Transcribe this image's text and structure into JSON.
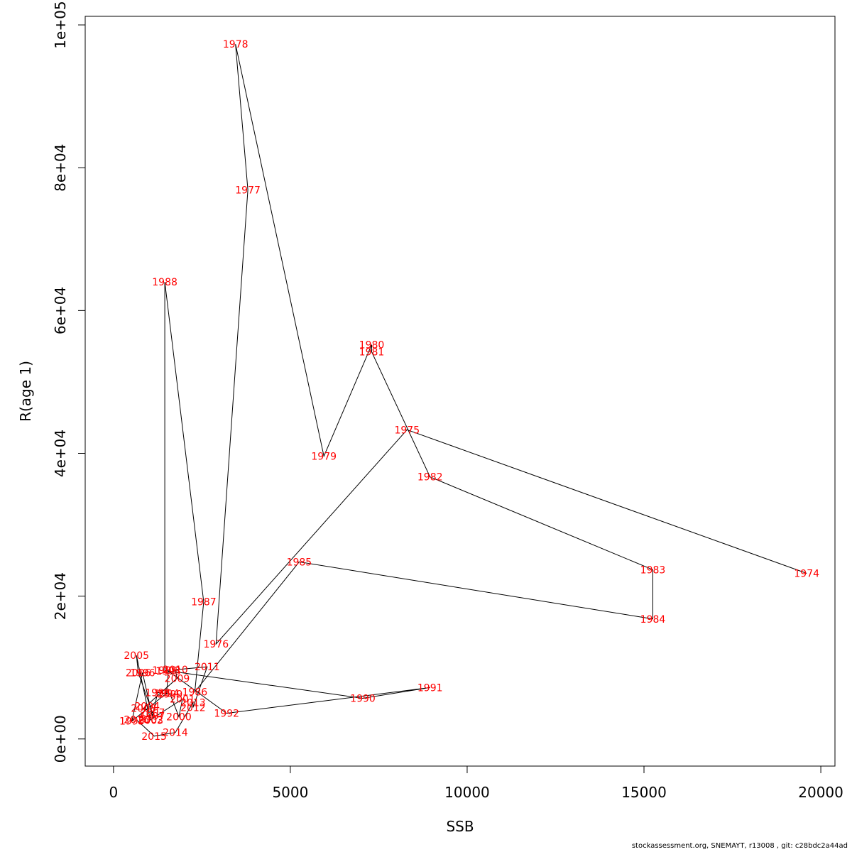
{
  "chart_data": {
    "type": "line",
    "xlabel": "SSB",
    "ylabel": "R(age 1)",
    "xlim": [
      -800,
      20400
    ],
    "ylim": [
      -3800,
      101200
    ],
    "x_ticks": [
      0,
      5000,
      10000,
      15000,
      20000
    ],
    "x_tick_labels": [
      "0",
      "5000",
      "10000",
      "15000",
      "20000"
    ],
    "y_ticks": [
      0,
      20000,
      40000,
      60000,
      80000,
      100000
    ],
    "y_tick_labels": [
      "0e+00",
      "2e+04",
      "4e+04",
      "6e+04",
      "8e+04",
      "1e+05"
    ],
    "grid": false,
    "legend": "none",
    "line_color": "#000000",
    "label_color": "#ff0000",
    "points": [
      {
        "year": "1974",
        "x": 19600,
        "y": 23200
      },
      {
        "year": "1975",
        "x": 8300,
        "y": 43300
      },
      {
        "year": "1976",
        "x": 2900,
        "y": 13300
      },
      {
        "year": "1977",
        "x": 3800,
        "y": 76900
      },
      {
        "year": "1978",
        "x": 3450,
        "y": 97300
      },
      {
        "year": "1979",
        "x": 5950,
        "y": 39600
      },
      {
        "year": "1980",
        "x": 7300,
        "y": 55200
      },
      {
        "year": "1981",
        "x": 7300,
        "y": 54200
      },
      {
        "year": "1982",
        "x": 8950,
        "y": 36700
      },
      {
        "year": "1983",
        "x": 15250,
        "y": 23700
      },
      {
        "year": "1984",
        "x": 15250,
        "y": 16800
      },
      {
        "year": "1985",
        "x": 5250,
        "y": 24800
      },
      {
        "year": "1986",
        "x": 2300,
        "y": 6600
      },
      {
        "year": "1987",
        "x": 2550,
        "y": 19200
      },
      {
        "year": "1988",
        "x": 1450,
        "y": 64000
      },
      {
        "year": "1989",
        "x": 1450,
        "y": 9600
      },
      {
        "year": "1990",
        "x": 7050,
        "y": 5700
      },
      {
        "year": "1991",
        "x": 8950,
        "y": 7200
      },
      {
        "year": "1992",
        "x": 3200,
        "y": 3600
      },
      {
        "year": "1993",
        "x": 1550,
        "y": 9500
      },
      {
        "year": "1994",
        "x": 1500,
        "y": 6400
      },
      {
        "year": "1995",
        "x": 520,
        "y": 2500
      },
      {
        "year": "1996",
        "x": 820,
        "y": 9300
      },
      {
        "year": "1997",
        "x": 1100,
        "y": 3200
      },
      {
        "year": "1998",
        "x": 1250,
        "y": 6500
      },
      {
        "year": "1999",
        "x": 1600,
        "y": 6300
      },
      {
        "year": "2000",
        "x": 1850,
        "y": 3100
      },
      {
        "year": "2001",
        "x": 1950,
        "y": 5600
      },
      {
        "year": "2002",
        "x": 1050,
        "y": 2700
      },
      {
        "year": "2003",
        "x": 1050,
        "y": 2600
      },
      {
        "year": "2004",
        "x": 950,
        "y": 4600
      },
      {
        "year": "2005",
        "x": 650,
        "y": 11700
      },
      {
        "year": "2006",
        "x": 700,
        "y": 9300
      },
      {
        "year": "2007",
        "x": 1100,
        "y": 3700
      },
      {
        "year": "2008",
        "x": 850,
        "y": 4300
      },
      {
        "year": "2009",
        "x": 1800,
        "y": 8500
      },
      {
        "year": "2010",
        "x": 1750,
        "y": 9700
      },
      {
        "year": "2011",
        "x": 2650,
        "y": 10100
      },
      {
        "year": "2012",
        "x": 2250,
        "y": 4400
      },
      {
        "year": "2013",
        "x": 2250,
        "y": 5100
      },
      {
        "year": "2014",
        "x": 1750,
        "y": 900
      },
      {
        "year": "2015",
        "x": 1150,
        "y": 400
      },
      {
        "year": "2016",
        "x": 650,
        "y": 2700
      }
    ]
  },
  "footer": "stockassessment.org, SNEMAYT, r13008 , git: c28bdc2a44ad"
}
